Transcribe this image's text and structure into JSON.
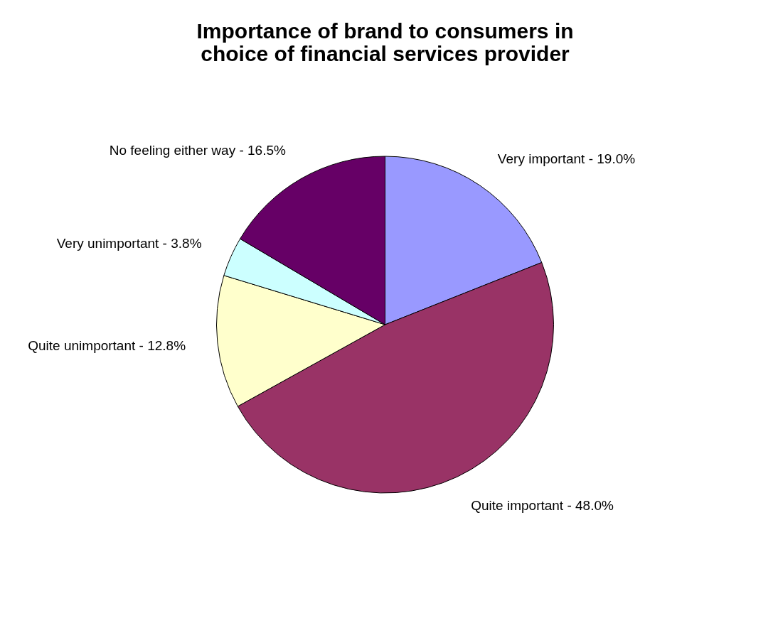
{
  "chart_data": {
    "type": "pie",
    "title": [
      "Importance of brand to consumers in",
      "choice of financial services provider"
    ],
    "categories": [
      "Very important - 19.0%",
      "Quite important - 48.0%",
      "Quite unimportant - 12.8%",
      "Very unimportant - 3.8%",
      "No feeling either way - 16.5%"
    ],
    "values": [
      19.0,
      48.0,
      12.8,
      3.8,
      16.5
    ],
    "colors": [
      "#9999ff",
      "#993366",
      "#ffffcc",
      "#ccffff",
      "#660066"
    ],
    "legend": false
  }
}
